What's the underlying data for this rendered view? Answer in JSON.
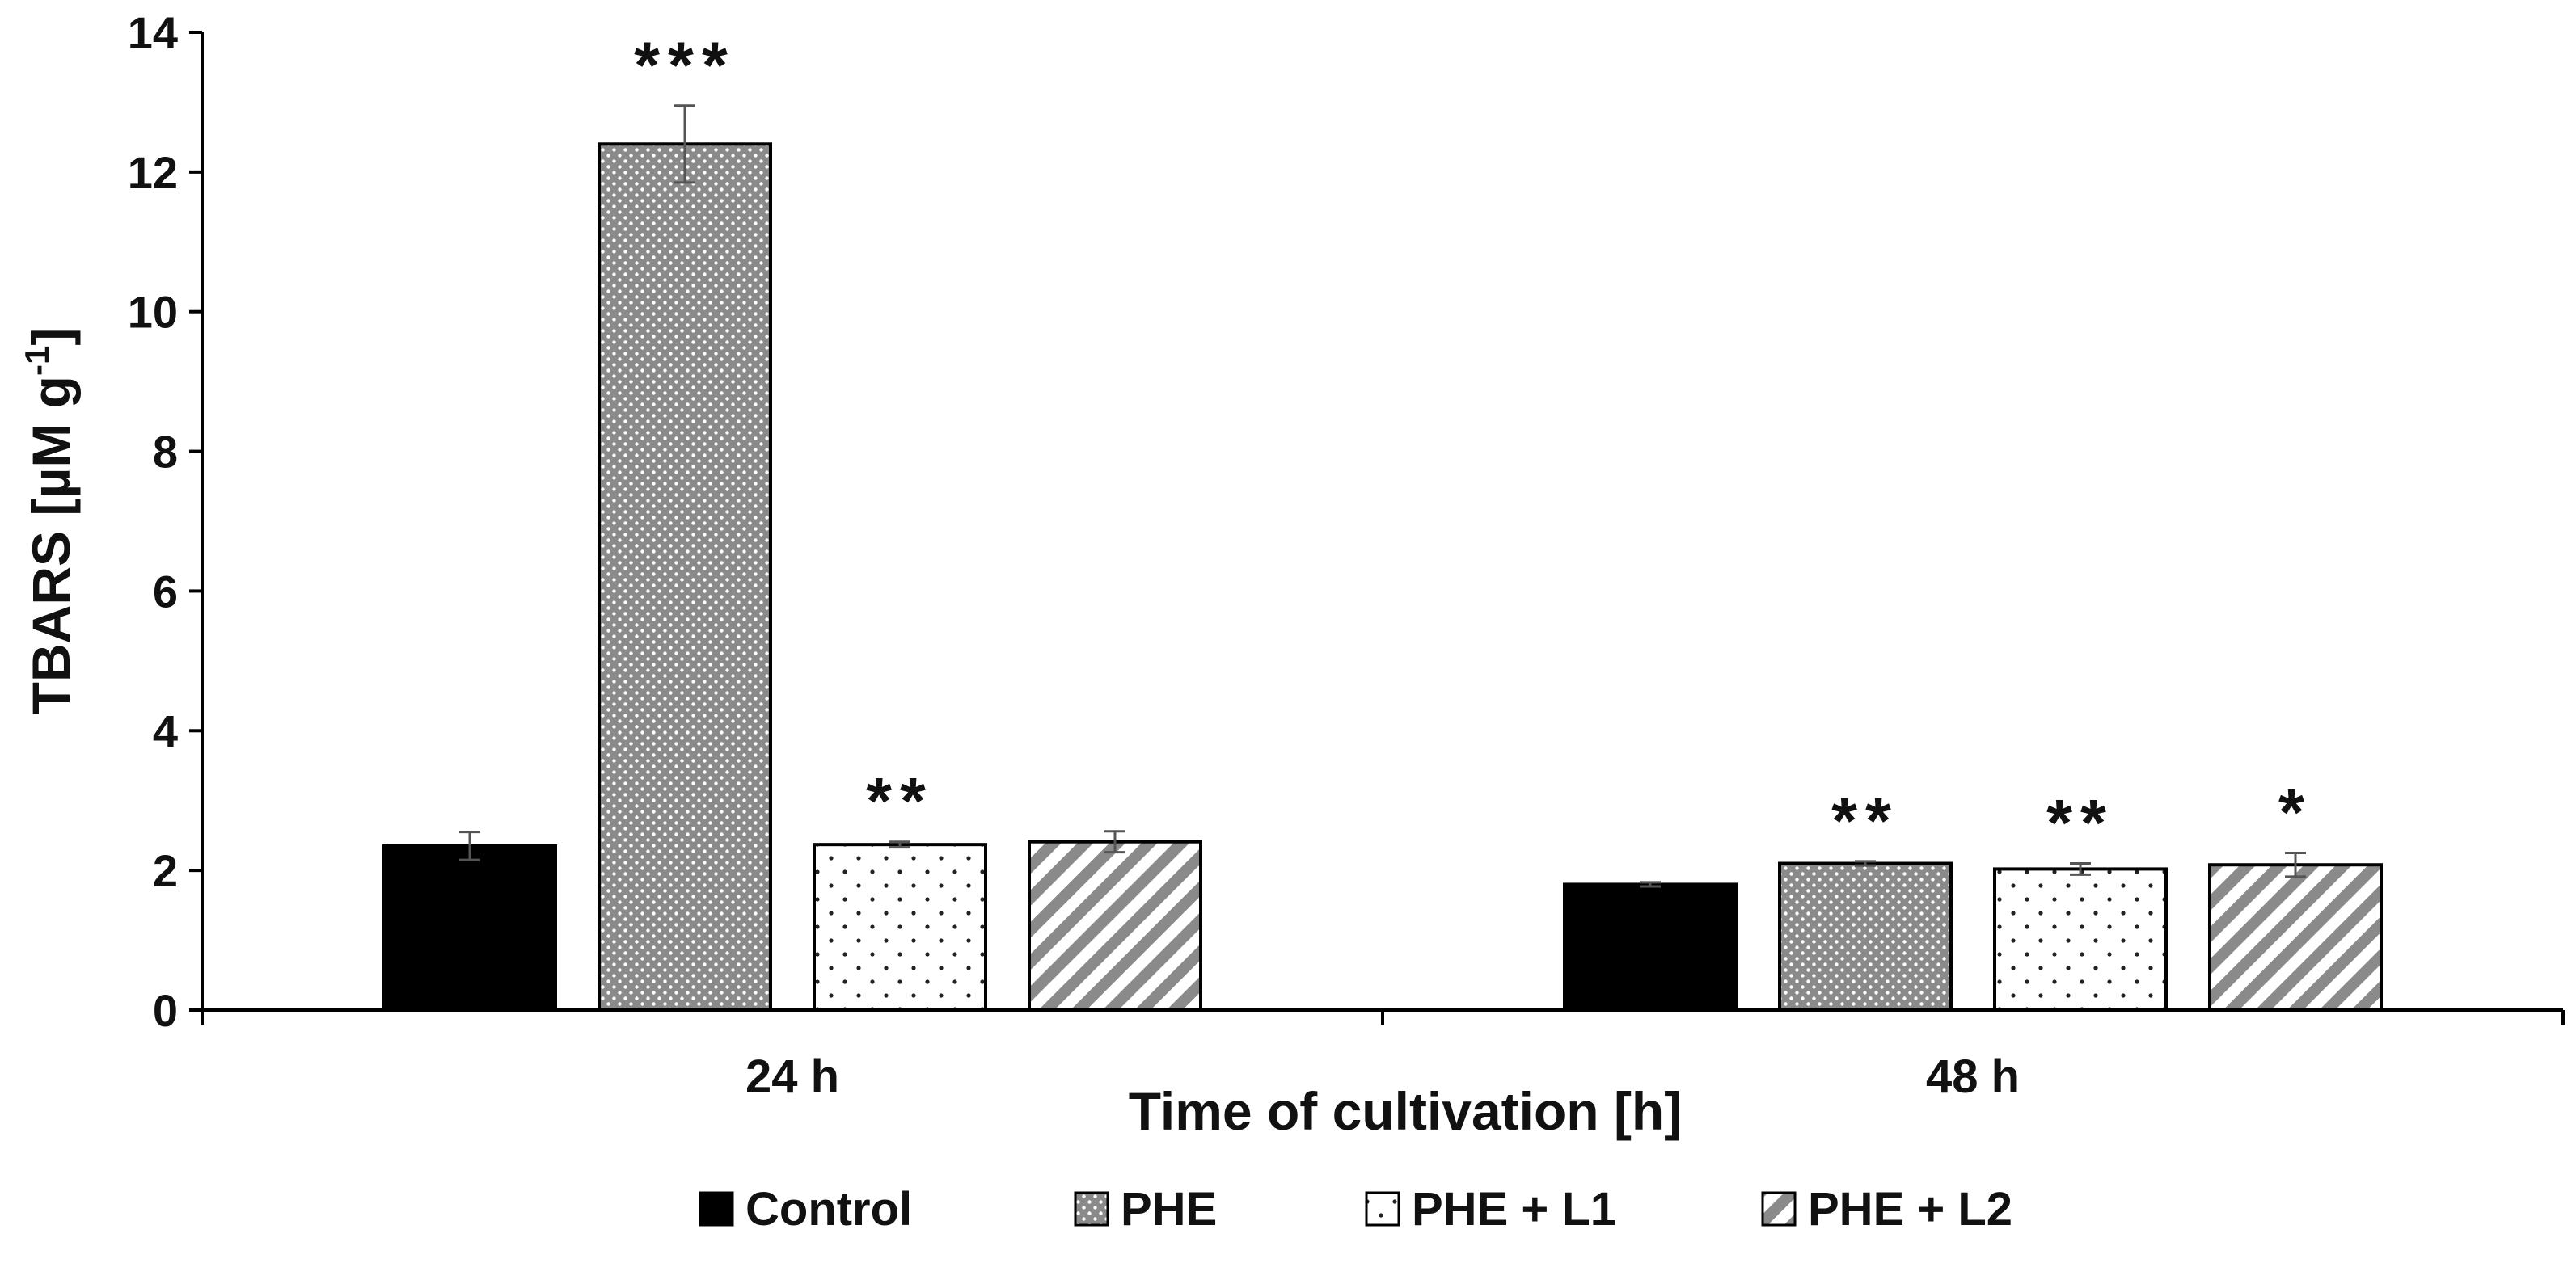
{
  "chart_data": {
    "type": "bar",
    "title": "",
    "xlabel": "Time of cultivation [h]",
    "ylabel_main": "TBARS [µM g",
    "ylabel_sup": "-1",
    "ylabel_close": "]",
    "ylim": [
      0,
      14
    ],
    "yticks": [
      "0",
      "2",
      "4",
      "6",
      "8",
      "10",
      "12",
      "14"
    ],
    "grid": false,
    "legend_position": "bottom",
    "categories": [
      "24 h",
      "48 h"
    ],
    "series": [
      {
        "name": "Control",
        "pattern": "solid",
        "values": [
          2.35,
          1.8
        ],
        "errors": [
          0.2,
          0.03
        ],
        "significance": [
          "",
          ""
        ]
      },
      {
        "name": "PHE",
        "pattern": "dots-dense",
        "values": [
          12.4,
          2.1
        ],
        "errors": [
          0.55,
          0.03
        ],
        "significance": [
          "***",
          "**"
        ]
      },
      {
        "name": "PHE + L1",
        "pattern": "dots-sparse",
        "values": [
          2.37,
          2.02
        ],
        "errors": [
          0.04,
          0.08
        ],
        "significance": [
          "**",
          "**"
        ]
      },
      {
        "name": "PHE + L2",
        "pattern": "diagonal",
        "values": [
          2.41,
          2.08
        ],
        "errors": [
          0.15,
          0.17
        ],
        "significance": [
          "",
          "*"
        ]
      }
    ],
    "colors": {
      "bar_fill_solid": "#000000",
      "pattern_gray": "#8a8a8a",
      "bar_stroke": "#000000",
      "error_bar": "#555555"
    }
  }
}
